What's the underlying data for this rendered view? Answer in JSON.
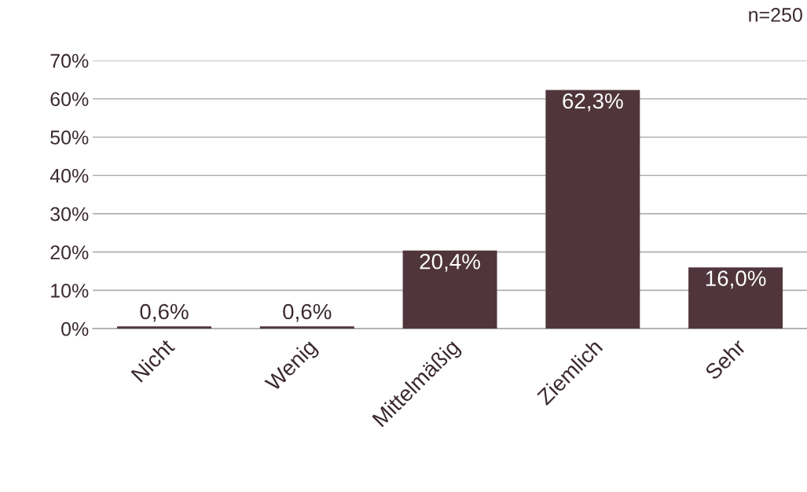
{
  "chart_data": {
    "type": "bar",
    "categories": [
      "Nicht",
      "Wenig",
      "Mittelmäßig",
      "Ziemlich",
      "Sehr"
    ],
    "values": [
      0.6,
      0.6,
      20.4,
      62.3,
      16.0
    ],
    "value_labels": [
      "0,6%",
      "0,6%",
      "20,4%",
      "62,3%",
      "16,0%"
    ],
    "color": "#50363c",
    "ylim": [
      0,
      70
    ],
    "yticks": [
      {
        "value": 0,
        "label": "0%"
      },
      {
        "value": 10,
        "label": "10%"
      },
      {
        "value": 20,
        "label": "20%"
      },
      {
        "value": 30,
        "label": "30%"
      },
      {
        "value": 40,
        "label": "40%"
      },
      {
        "value": 50,
        "label": "50%"
      },
      {
        "value": 60,
        "label": "60%"
      },
      {
        "value": 70,
        "label": "70%"
      }
    ],
    "grid": "y",
    "annotations": [
      "n=250"
    ]
  }
}
